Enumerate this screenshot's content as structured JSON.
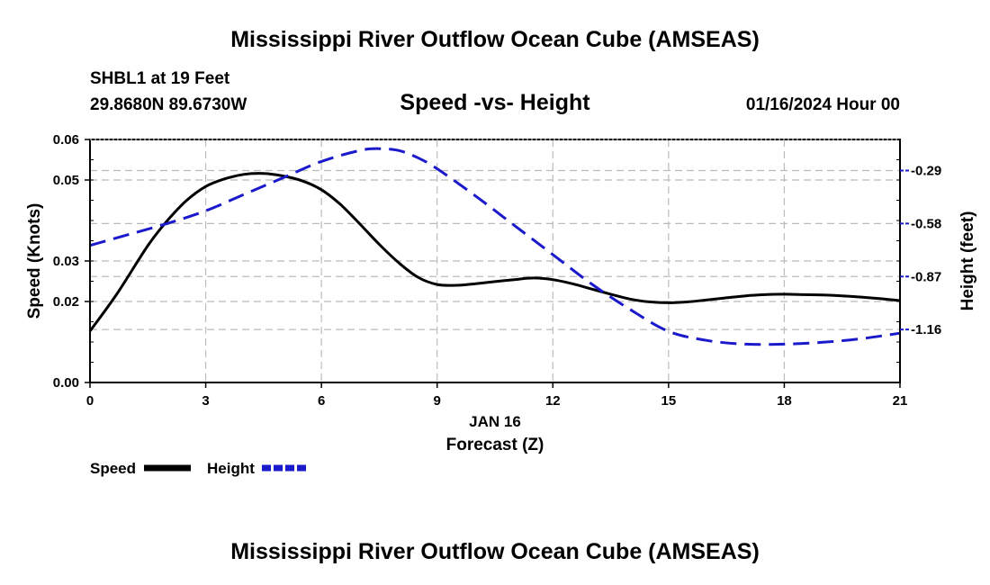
{
  "header": {
    "title": "Mississippi River Outflow Ocean Cube (AMSEAS)",
    "station": "SHBL1 at 19 Feet",
    "coords": "29.8680N  89.6730W",
    "subtitle": "Speed -vs- Height",
    "datetime": "01/16/2024 Hour 00"
  },
  "footer": {
    "title": "Mississippi River Outflow Ocean Cube (AMSEAS)"
  },
  "colors": {
    "speed": "#000000",
    "height": "#1a1acc",
    "grid": "#bbbbbb"
  },
  "chart_data": {
    "type": "line",
    "title": "Speed -vs- Height",
    "date_label": "JAN 16",
    "xlabel": "Forecast (Z)",
    "ylabel": "Speed (Knots)",
    "y2label": "Height (feet)",
    "xlim": [
      0,
      21
    ],
    "ylim": [
      0,
      0.06
    ],
    "y2lim": [
      -1.45,
      -0.12
    ],
    "x_ticks": [
      0,
      3,
      6,
      9,
      12,
      15,
      18,
      21
    ],
    "x_tick_labels": [
      "0",
      "3",
      "6",
      "9",
      "12",
      "15",
      "18",
      "21"
    ],
    "y_ticks": [
      0,
      0.02,
      0.03,
      0.05,
      0.06
    ],
    "y_tick_labels": [
      "0.00",
      "0.02",
      "0.03",
      "0.05",
      "0.06"
    ],
    "y2_ticks": [
      -0.29,
      -0.58,
      -0.87,
      -1.16
    ],
    "y2_tick_labels": [
      "-0.29",
      "-0.58",
      "-0.87",
      "-1.16"
    ],
    "grid": true,
    "legend": [
      "Speed",
      "Height"
    ],
    "series": [
      {
        "name": "Speed",
        "axis": "left",
        "style": "solid",
        "x": [
          0,
          0.7,
          1.5,
          2.0,
          2.5,
          3.0,
          3.5,
          4.0,
          4.5,
          5.0,
          5.5,
          6.0,
          6.5,
          7.0,
          7.5,
          8.0,
          8.5,
          9.0,
          9.5,
          10.0,
          10.5,
          11.0,
          11.5,
          12.0,
          12.5,
          13.0,
          13.5,
          14.0,
          14.5,
          15.0,
          15.5,
          16.0,
          16.5,
          17.0,
          17.5,
          18.0,
          18.5,
          19.0,
          19.5,
          20.0,
          20.5,
          21.0
        ],
        "values": [
          0.0127,
          0.0219,
          0.0338,
          0.0399,
          0.0449,
          0.0484,
          0.0503,
          0.0514,
          0.0516,
          0.051,
          0.0498,
          0.0476,
          0.0439,
          0.0391,
          0.0341,
          0.0296,
          0.026,
          0.0242,
          0.024,
          0.0244,
          0.0249,
          0.0254,
          0.0258,
          0.0254,
          0.0244,
          0.0231,
          0.0218,
          0.0206,
          0.0199,
          0.0197,
          0.0199,
          0.0204,
          0.0209,
          0.0214,
          0.0217,
          0.0218,
          0.0217,
          0.0216,
          0.0214,
          0.0211,
          0.0207,
          0.0202
        ]
      },
      {
        "name": "Height",
        "axis": "right",
        "style": "dashed",
        "x": [
          0,
          1,
          2,
          3,
          4,
          5,
          6,
          7,
          7.5,
          8,
          8.5,
          9,
          10,
          11,
          12,
          13,
          14,
          15,
          16,
          17,
          18,
          19,
          20,
          21
        ],
        "values": [
          -0.7,
          -0.64,
          -0.58,
          -0.51,
          -0.42,
          -0.33,
          -0.24,
          -0.18,
          -0.17,
          -0.18,
          -0.22,
          -0.28,
          -0.43,
          -0.59,
          -0.75,
          -0.91,
          -1.05,
          -1.17,
          -1.22,
          -1.24,
          -1.24,
          -1.23,
          -1.21,
          -1.18
        ]
      }
    ]
  }
}
